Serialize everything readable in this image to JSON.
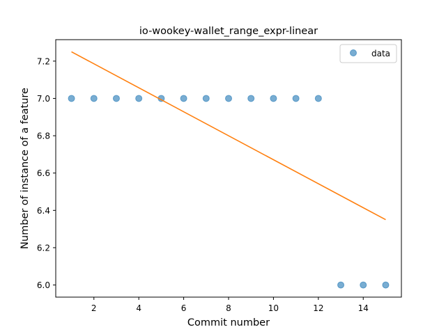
{
  "chart_data": {
    "type": "scatter",
    "title": "io-wookey-wallet_range_expr-linear",
    "xlabel": "Commit number",
    "ylabel": "Number of instance of a feature",
    "xlim": [
      0.3,
      15.7
    ],
    "ylim": [
      5.935,
      7.315
    ],
    "xticks": [
      2,
      4,
      6,
      8,
      10,
      12,
      14
    ],
    "yticks": [
      6.0,
      6.2,
      6.4,
      6.6,
      6.8,
      7.0,
      7.2
    ],
    "legend_position": "top-right",
    "grid": false,
    "series": [
      {
        "name": "data",
        "kind": "scatter",
        "color": "#1f77b4",
        "x": [
          1,
          2,
          3,
          4,
          5,
          6,
          7,
          8,
          9,
          10,
          11,
          12,
          13,
          14,
          15
        ],
        "y": [
          7,
          7,
          7,
          7,
          7,
          7,
          7,
          7,
          7,
          7,
          7,
          7,
          6,
          6,
          6
        ]
      },
      {
        "kind": "line",
        "color": "#ff7f0e",
        "x": [
          1,
          15
        ],
        "y": [
          7.25,
          6.35
        ]
      }
    ]
  }
}
